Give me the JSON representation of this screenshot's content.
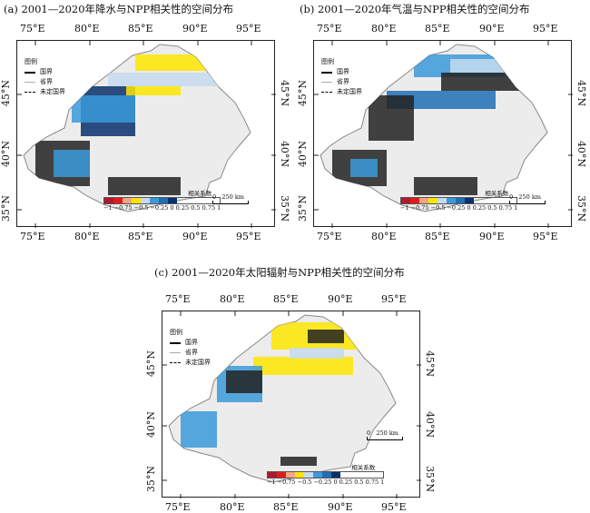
{
  "panels": [
    {
      "title": "(a) 2001—2020年降水与NPP相关性的空间分布"
    },
    {
      "title": "(b) 2001—2020年气温与NPP相关性的空间分布"
    },
    {
      "title": "(c) 2001—2020年太阳辐射与NPP相关性的空间分布"
    }
  ],
  "axes": {
    "lon": [
      "75°E",
      "80°E",
      "85°E",
      "90°E",
      "95°E"
    ],
    "lat": [
      "45°N",
      "40°N",
      "35°N"
    ]
  },
  "legend": {
    "title": "图例",
    "items": [
      "国界",
      "省界",
      "未定国界"
    ]
  },
  "colorbar": {
    "title": "相关系数",
    "ticks": "−1 −0.75 −0.5 −0.25 0  0.25  0.5  0.75  1",
    "colors": [
      "#b2182b",
      "#e31a1c",
      "#f4a582",
      "#ffe600",
      "#c6dbef",
      "#3a9ad9",
      "#1f6fb5",
      "#08306b"
    ]
  },
  "scale": {
    "zero": "0",
    "label": "250 km"
  }
}
